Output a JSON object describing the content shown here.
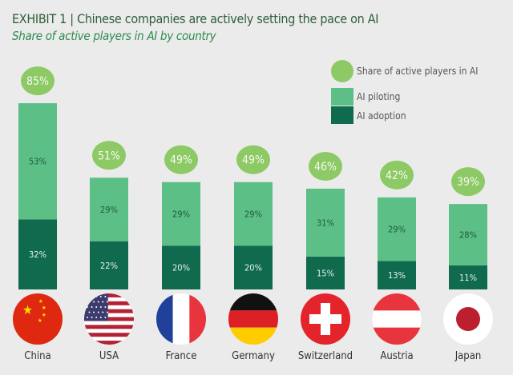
{
  "chart_data": {
    "type": "bar",
    "stacked": true,
    "title_prefix": "EXHIBIT 1",
    "title": "Chinese companies are actively setting the pace on AI",
    "subtitle": "Share of active players in AI by country",
    "categories": [
      "China",
      "USA",
      "France",
      "Germany",
      "Switzerland",
      "Austria",
      "Japan"
    ],
    "series": [
      {
        "name": "AI adoption",
        "values": [
          32,
          22,
          20,
          20,
          15,
          13,
          11
        ],
        "color": "#0f6a4e"
      },
      {
        "name": "AI piloting",
        "values": [
          53,
          29,
          29,
          29,
          31,
          29,
          28
        ],
        "color": "#5cbf86"
      }
    ],
    "totals": {
      "name": "Share of active players in AI",
      "values": [
        85,
        51,
        49,
        49,
        46,
        42,
        39
      ],
      "color": "#8dc965"
    },
    "legend": "top-right",
    "grid": false,
    "icons": [
      "flag-china",
      "flag-usa",
      "flag-france",
      "flag-germany",
      "flag-switzerland",
      "flag-austria",
      "flag-japan"
    ]
  }
}
